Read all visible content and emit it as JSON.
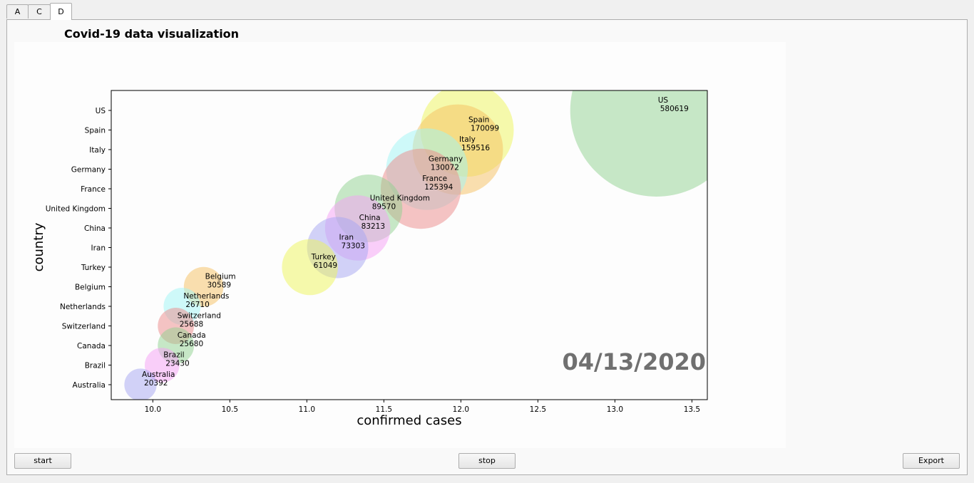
{
  "tabs": [
    {
      "label": "A",
      "active": false
    },
    {
      "label": "C",
      "active": false
    },
    {
      "label": "D",
      "active": true
    }
  ],
  "panel": {
    "title": "Covid-19 data visualization",
    "grip": "......"
  },
  "buttons": {
    "start": "start",
    "stop": "stop",
    "export": "Export"
  },
  "chart_data": {
    "type": "scatter",
    "date_label": "04/13/2020",
    "xlabel": "confirmed cases",
    "ylabel": "country",
    "xlim": [
      9.73,
      13.6
    ],
    "xticks": [
      10.0,
      10.5,
      11.0,
      11.5,
      12.0,
      12.5,
      13.0,
      13.5
    ],
    "xtick_labels": [
      "10.0",
      "10.5",
      "11.0",
      "11.5",
      "12.0",
      "12.5",
      "13.0",
      "13.5"
    ],
    "categories": [
      "US",
      "Spain",
      "Italy",
      "Germany",
      "France",
      "United Kingdom",
      "China",
      "Iran",
      "Turkey",
      "Belgium",
      "Netherlands",
      "Switzerland",
      "Canada",
      "Brazil",
      "Australia"
    ],
    "points": [
      {
        "country": "US",
        "x": 13.27,
        "value": "580619",
        "color": "#8fd18f"
      },
      {
        "country": "Spain",
        "x": 12.04,
        "value": "170099",
        "color": "#eef55a"
      },
      {
        "country": "Italy",
        "x": 11.98,
        "value": "159516",
        "color": "#f6bf5f"
      },
      {
        "country": "Germany",
        "x": 11.78,
        "value": "130072",
        "color": "#9ff5f5"
      },
      {
        "country": "France",
        "x": 11.74,
        "value": "125394",
        "color": "#ec8a8a"
      },
      {
        "country": "United Kingdom",
        "x": 11.4,
        "value": "89570",
        "color": "#8fd18f"
      },
      {
        "country": "China",
        "x": 11.33,
        "value": "83213",
        "color": "#f6a0f6"
      },
      {
        "country": "Iran",
        "x": 11.2,
        "value": "73303",
        "color": "#a6a6f2"
      },
      {
        "country": "Turkey",
        "x": 11.02,
        "value": "61049",
        "color": "#eef55a"
      },
      {
        "country": "Belgium",
        "x": 10.33,
        "value": "30589",
        "color": "#f6bf5f"
      },
      {
        "country": "Netherlands",
        "x": 10.19,
        "value": "26710",
        "color": "#9ff5f5"
      },
      {
        "country": "Switzerland",
        "x": 10.15,
        "value": "25688",
        "color": "#ec8a8a"
      },
      {
        "country": "Canada",
        "x": 10.15,
        "value": "25680",
        "color": "#8fd18f"
      },
      {
        "country": "Brazil",
        "x": 10.06,
        "value": "23430",
        "color": "#f6a0f6"
      },
      {
        "country": "Australia",
        "x": 9.92,
        "value": "20392",
        "color": "#a6a6f2"
      }
    ]
  }
}
